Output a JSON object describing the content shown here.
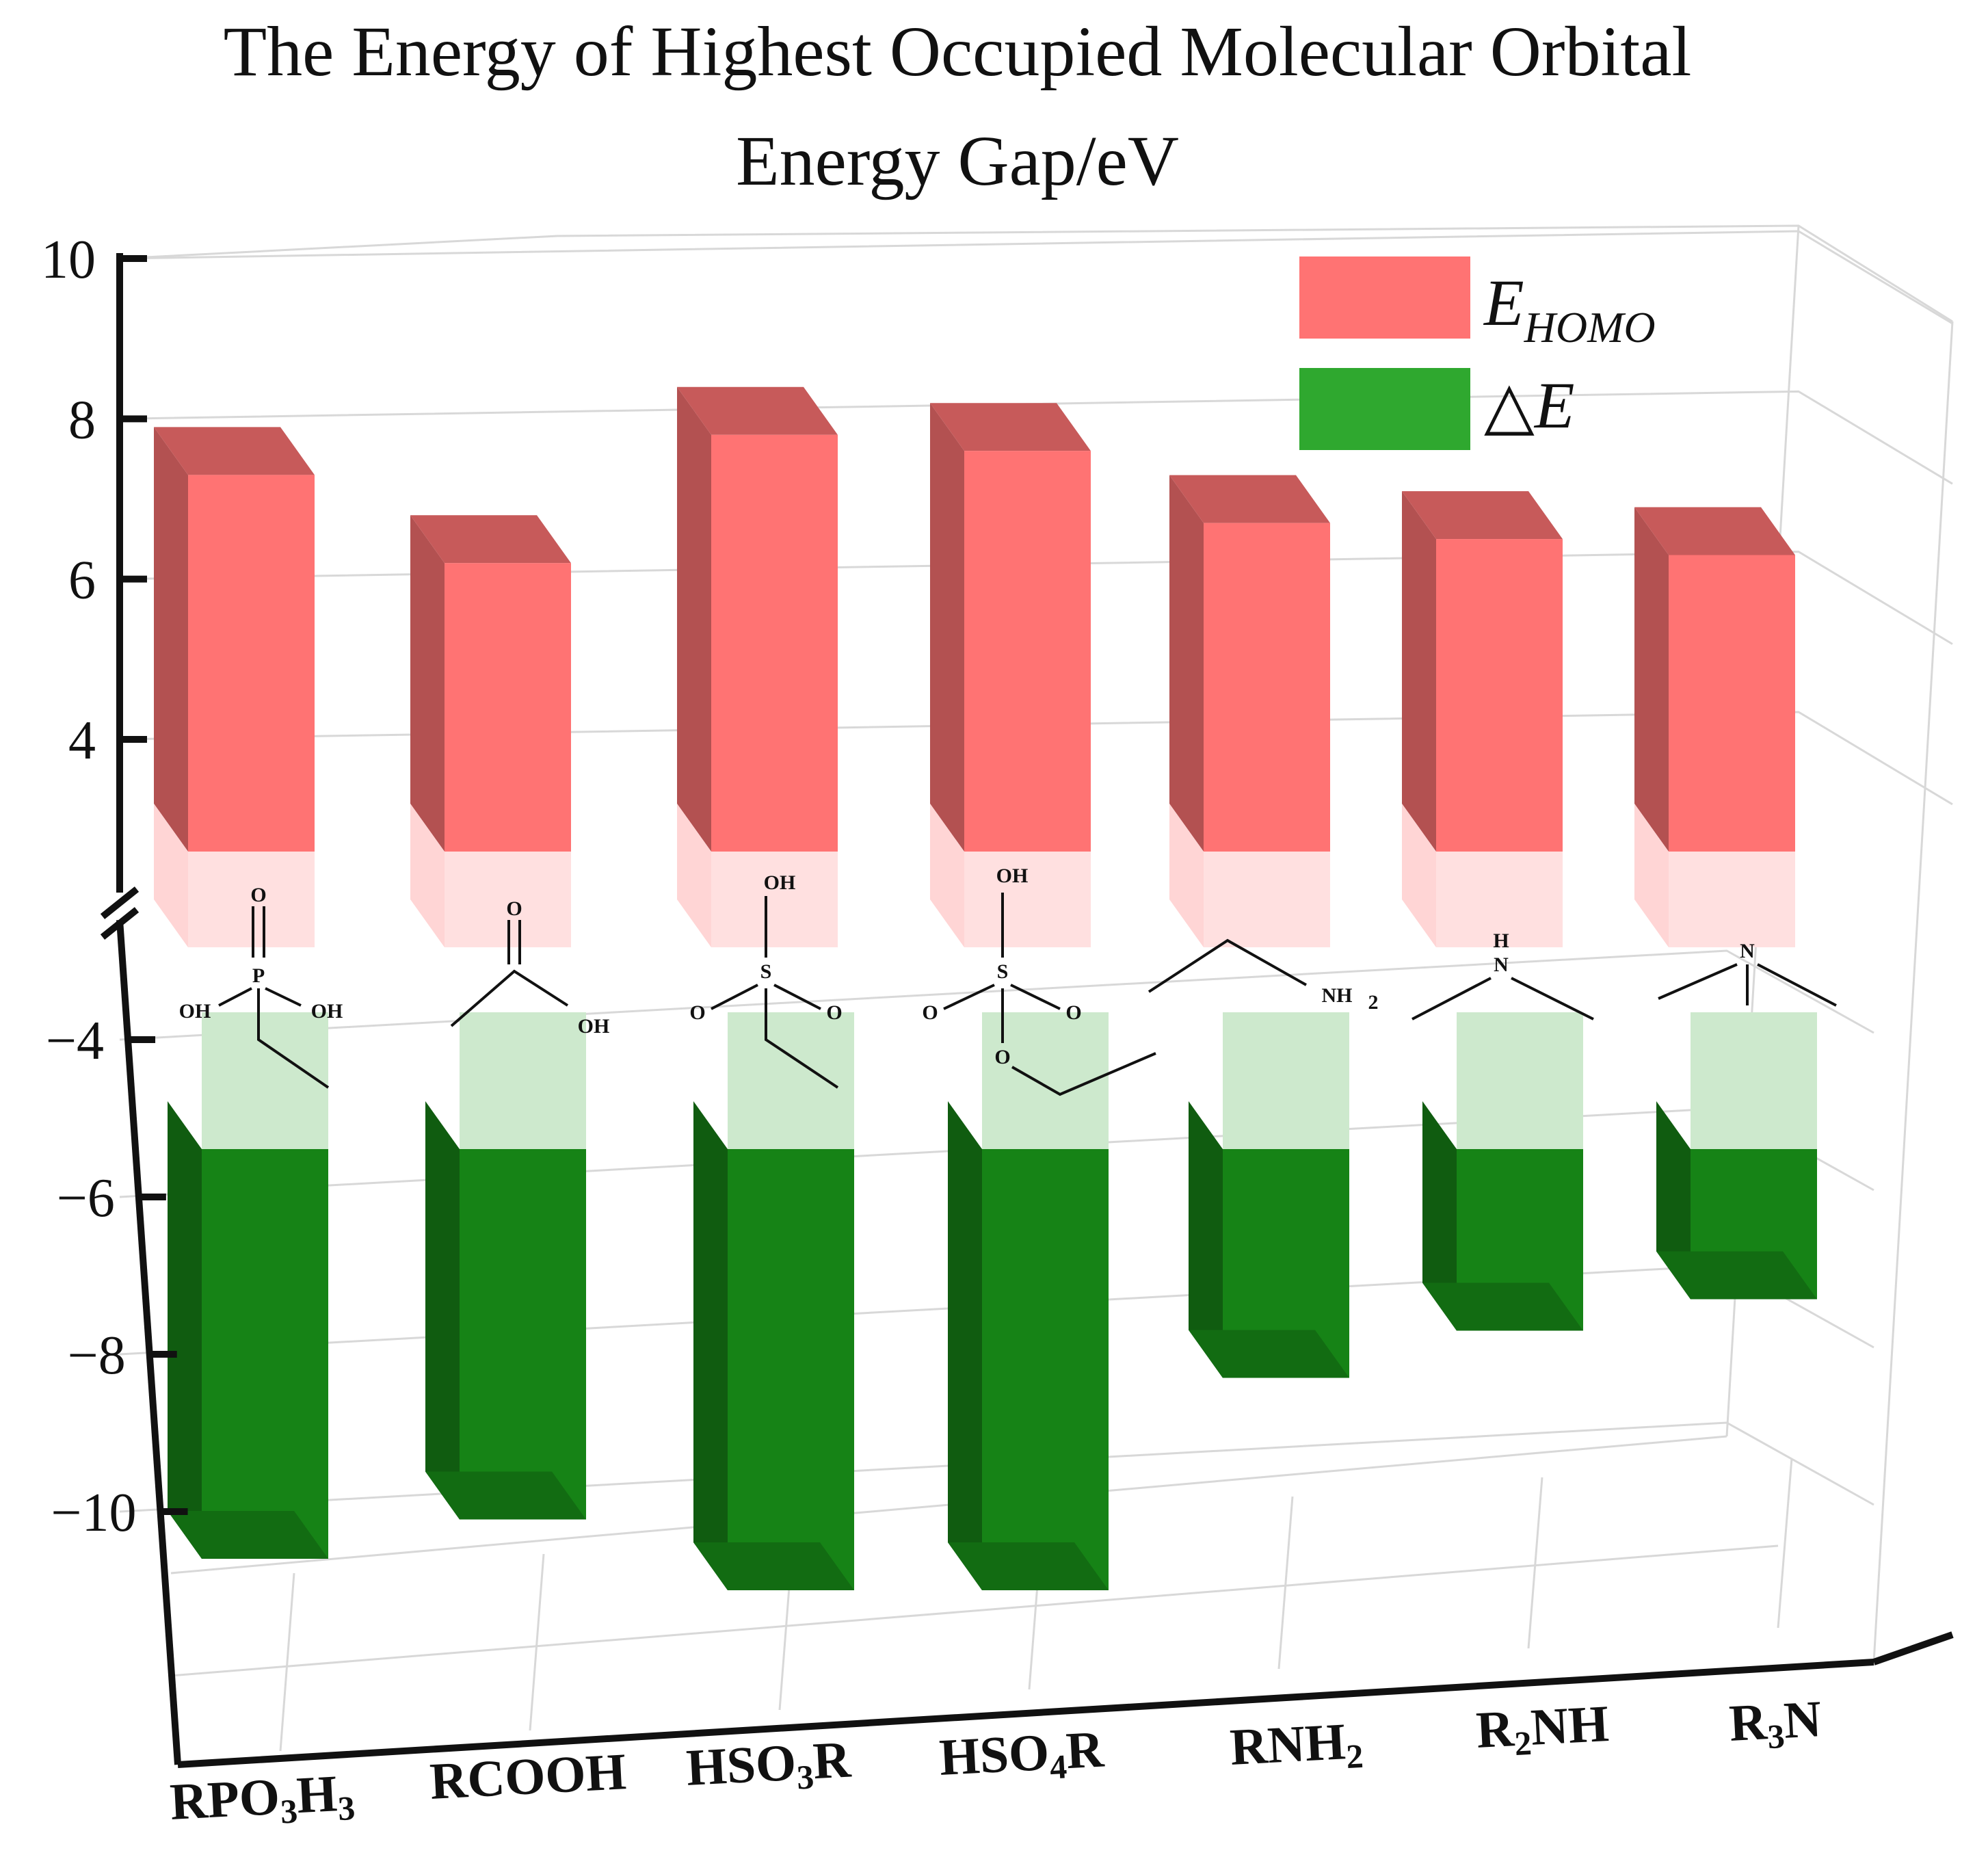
{
  "chart_data": {
    "type": "bar",
    "title": "The Energy of Highest Occupied Molecular Orbital",
    "subtitle": "Energy Gap/eV",
    "categories": [
      "RPO3H3",
      "RCOOH",
      "HSO3R",
      "HSO4R",
      "RNH2",
      "R2NH",
      "R3N"
    ],
    "category_labels": [
      {
        "parts": [
          "RPO",
          "3",
          "H",
          "3"
        ]
      },
      {
        "parts": [
          "RCOOH"
        ]
      },
      {
        "parts": [
          "HSO",
          "3",
          "R"
        ]
      },
      {
        "parts": [
          "HSO",
          "4",
          "R"
        ]
      },
      {
        "parts": [
          "RNH",
          "2"
        ]
      },
      {
        "parts": [
          "R",
          "2",
          "NH"
        ]
      },
      {
        "parts": [
          "R",
          "3",
          "N"
        ]
      }
    ],
    "series": [
      {
        "name": "E_HOMO",
        "legend": {
          "main": "E",
          "sub": "HOMO"
        },
        "color": "#ff7373",
        "values": [
          7.3,
          6.2,
          7.8,
          7.6,
          6.7,
          6.5,
          6.3
        ]
      },
      {
        "name": "ΔE",
        "legend": {
          "main": "△E",
          "sub": ""
        },
        "color": "#1a9a1a",
        "values": [
          -10.6,
          -10.1,
          -11.0,
          -11.0,
          -8.3,
          -7.7,
          -7.3
        ]
      }
    ],
    "yticks": [
      "10",
      "8",
      "6",
      "4",
      "−4",
      "−6",
      "−8",
      "−10"
    ],
    "ytick_values": [
      10,
      8,
      6,
      4,
      -4,
      -6,
      -8,
      -10
    ],
    "ylim_upper": [
      2.6,
      10
    ],
    "ylim_lower": [
      -12,
      -2
    ],
    "axis_break": true,
    "grid": true,
    "legend_position": "top-right",
    "molecule_labels": {
      "P": "P",
      "S": "S",
      "O": "O",
      "OH": "OH",
      "H": "H",
      "N": "N",
      "NH": "NH",
      "2": "2"
    }
  }
}
